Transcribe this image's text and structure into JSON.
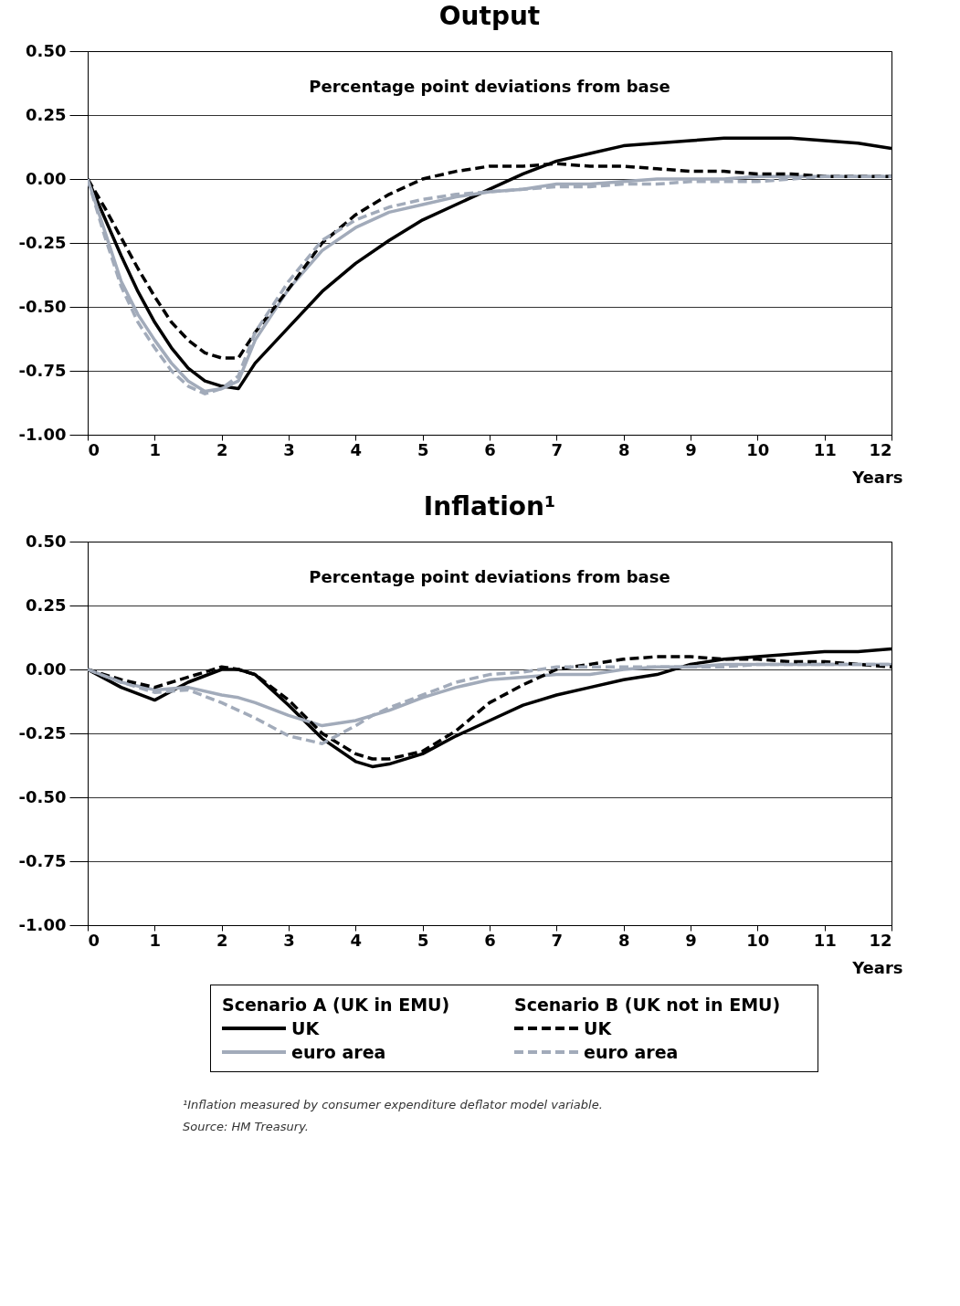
{
  "chart_data": [
    {
      "type": "line",
      "title": "Output",
      "xlabel": "Years",
      "annotations": [
        "Percentage point deviations from base"
      ],
      "x": [
        0,
        0.25,
        0.5,
        0.75,
        1,
        1.25,
        1.5,
        1.75,
        2,
        2.25,
        2.5,
        3,
        3.5,
        4,
        4.5,
        5,
        5.5,
        6,
        6.5,
        7,
        7.5,
        8,
        8.5,
        9,
        9.5,
        10,
        10.5,
        11,
        11.5,
        12
      ],
      "series": [
        {
          "color": "#000000",
          "line_style": "solid",
          "values": [
            0,
            -0.15,
            -0.3,
            -0.44,
            -0.56,
            -0.66,
            -0.74,
            -0.79,
            -0.81,
            -0.82,
            -0.72,
            -0.58,
            -0.44,
            -0.33,
            -0.24,
            -0.16,
            -0.1,
            -0.04,
            0.02,
            0.07,
            0.1,
            0.13,
            0.14,
            0.15,
            0.16,
            0.16,
            0.16,
            0.15,
            0.14,
            0.12
          ]
        },
        {
          "color": "#a2abba",
          "line_style": "solid",
          "values": [
            0,
            -0.2,
            -0.4,
            -0.53,
            -0.63,
            -0.72,
            -0.79,
            -0.83,
            -0.82,
            -0.79,
            -0.63,
            -0.43,
            -0.28,
            -0.19,
            -0.13,
            -0.1,
            -0.07,
            -0.05,
            -0.04,
            -0.02,
            -0.02,
            -0.01,
            0,
            0,
            0,
            0.01,
            0.01,
            0.01,
            0.01,
            0.01
          ]
        },
        {
          "color": "#000000",
          "line_style": "dashed",
          "values": [
            0,
            -0.11,
            -0.23,
            -0.35,
            -0.46,
            -0.56,
            -0.63,
            -0.68,
            -0.7,
            -0.7,
            -0.6,
            -0.43,
            -0.25,
            -0.14,
            -0.06,
            0,
            0.03,
            0.05,
            0.05,
            0.06,
            0.05,
            0.05,
            0.04,
            0.03,
            0.03,
            0.02,
            0.02,
            0.01,
            0.01,
            0.01
          ]
        },
        {
          "color": "#a2abba",
          "line_style": "dashed",
          "values": [
            0,
            -0.22,
            -0.42,
            -0.56,
            -0.66,
            -0.75,
            -0.81,
            -0.84,
            -0.82,
            -0.77,
            -0.6,
            -0.4,
            -0.24,
            -0.16,
            -0.11,
            -0.08,
            -0.06,
            -0.05,
            -0.04,
            -0.03,
            -0.03,
            -0.02,
            -0.02,
            -0.01,
            -0.01,
            -0.01,
            0,
            0.01,
            0.01,
            0.01
          ]
        }
      ],
      "xlim": [
        0,
        12
      ],
      "xticks": [
        0,
        1,
        2,
        3,
        4,
        5,
        6,
        7,
        8,
        9,
        10,
        11,
        12
      ],
      "ylim": [
        -1,
        0.5
      ],
      "yticks": [
        {
          "value": -1,
          "label": "-1.00"
        },
        {
          "value": -0.75,
          "label": "-0.75"
        },
        {
          "value": -0.5,
          "label": "-0.50"
        },
        {
          "value": -0.25,
          "label": "-0.25"
        },
        {
          "value": 0,
          "label": "0.00"
        },
        {
          "value": 0.25,
          "label": "0.25"
        },
        {
          "value": 0.5,
          "label": "0.50"
        }
      ],
      "grid": "y"
    },
    {
      "type": "line",
      "title": "Inflation¹",
      "xlabel": "Years",
      "annotations": [
        "Percentage point deviations from base",
        "Scenario A (UK in EMU)",
        "Scenario B (UK not in EMU)",
        "¹Inflation measured by consumer expenditure deflator model variable.",
        "Source: HM Treasury."
      ],
      "x": [
        0,
        0.5,
        1,
        1.5,
        2,
        2.25,
        2.5,
        3,
        3.5,
        4,
        4.25,
        4.5,
        5,
        5.5,
        6,
        6.5,
        7,
        7.5,
        8,
        8.5,
        9,
        9.5,
        10,
        10.5,
        11,
        11.5,
        12
      ],
      "series": [
        {
          "name": "UK",
          "color": "#000000",
          "line_style": "solid",
          "values": [
            0,
            -0.07,
            -0.12,
            -0.05,
            0,
            0,
            -0.02,
            -0.14,
            -0.27,
            -0.36,
            -0.38,
            -0.37,
            -0.33,
            -0.26,
            -0.2,
            -0.14,
            -0.1,
            -0.07,
            -0.04,
            -0.02,
            0.02,
            0.04,
            0.05,
            0.06,
            0.07,
            0.07,
            0.08
          ]
        },
        {
          "name": "euro area",
          "color": "#a2abba",
          "line_style": "solid",
          "values": [
            0,
            -0.05,
            -0.08,
            -0.07,
            -0.1,
            -0.11,
            -0.13,
            -0.18,
            -0.22,
            -0.2,
            -0.18,
            -0.16,
            -0.11,
            -0.07,
            -0.04,
            -0.03,
            -0.02,
            -0.02,
            0,
            0.01,
            0.01,
            0.02,
            0.02,
            0.02,
            0.02,
            0.02,
            0.02
          ]
        },
        {
          "name": "UK",
          "color": "#000000",
          "line_style": "dashed",
          "values": [
            0,
            -0.04,
            -0.07,
            -0.03,
            0.01,
            0,
            -0.02,
            -0.12,
            -0.25,
            -0.33,
            -0.35,
            -0.35,
            -0.32,
            -0.24,
            -0.13,
            -0.06,
            0,
            0.02,
            0.04,
            0.05,
            0.05,
            0.04,
            0.04,
            0.03,
            0.03,
            0.02,
            0.01
          ]
        },
        {
          "name": "euro area",
          "color": "#a2abba",
          "line_style": "dashed",
          "values": [
            0,
            -0.05,
            -0.09,
            -0.08,
            -0.13,
            -0.16,
            -0.19,
            -0.26,
            -0.29,
            -0.22,
            -0.18,
            -0.15,
            -0.1,
            -0.05,
            -0.02,
            -0.01,
            0.01,
            0.01,
            0.01,
            0.01,
            0.01,
            0.01,
            0.02,
            0.02,
            0.02,
            0.02,
            0.02
          ]
        }
      ],
      "xlim": [
        0,
        12
      ],
      "xticks": [
        0,
        1,
        2,
        3,
        4,
        5,
        6,
        7,
        8,
        9,
        10,
        11,
        12
      ],
      "ylim": [
        -1,
        0.5
      ],
      "yticks": [
        {
          "value": -1,
          "label": "-1.00"
        },
        {
          "value": -0.75,
          "label": "-0.75"
        },
        {
          "value": -0.5,
          "label": "-0.50"
        },
        {
          "value": -0.25,
          "label": "-0.25"
        },
        {
          "value": 0,
          "label": "0.00"
        },
        {
          "value": 0.25,
          "label": "0.25"
        },
        {
          "value": 0.5,
          "label": "0.50"
        }
      ],
      "grid": "y",
      "legend": "bottom"
    }
  ]
}
